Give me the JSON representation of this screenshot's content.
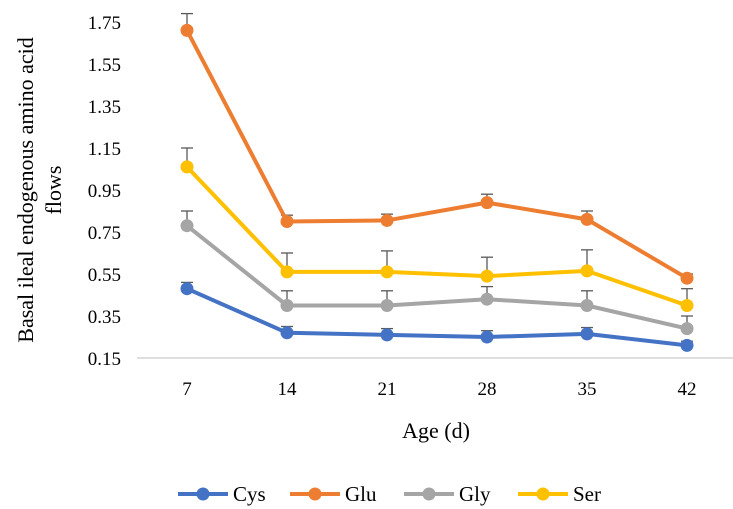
{
  "chart_data": {
    "type": "line",
    "xlabel": "Age (d)",
    "ylabel_lines": [
      "Basal ileal endogenous amino acid",
      "flows"
    ],
    "categories": [
      "7",
      "14",
      "21",
      "28",
      "35",
      "42"
    ],
    "ylim": [
      0.15,
      1.75
    ],
    "yticks": [
      "0.15",
      "0.35",
      "0.55",
      "0.75",
      "0.95",
      "1.15",
      "1.35",
      "1.55",
      "1.75"
    ],
    "grid": false,
    "legend_position": "bottom",
    "error_bars": true,
    "series": [
      {
        "name": "Cys",
        "color": "#4472C4",
        "values": [
          0.48,
          0.27,
          0.26,
          0.25,
          0.265,
          0.21
        ],
        "errors": [
          0.03,
          0.03,
          0.03,
          0.03,
          0.03,
          0.02
        ]
      },
      {
        "name": "Glu",
        "color": "#ED7D31",
        "values": [
          1.71,
          0.8,
          0.805,
          0.89,
          0.81,
          0.53
        ],
        "errors": [
          0.08,
          0.03,
          0.03,
          0.04,
          0.04,
          0.02
        ]
      },
      {
        "name": "Gly",
        "color": "#A5A5A5",
        "values": [
          0.78,
          0.4,
          0.4,
          0.43,
          0.4,
          0.29
        ],
        "errors": [
          0.07,
          0.07,
          0.07,
          0.06,
          0.07,
          0.06
        ]
      },
      {
        "name": "Ser",
        "color": "#FFC000",
        "values": [
          1.06,
          0.56,
          0.56,
          0.54,
          0.565,
          0.4
        ],
        "errors": [
          0.09,
          0.09,
          0.1,
          0.09,
          0.1,
          0.08
        ]
      }
    ]
  }
}
